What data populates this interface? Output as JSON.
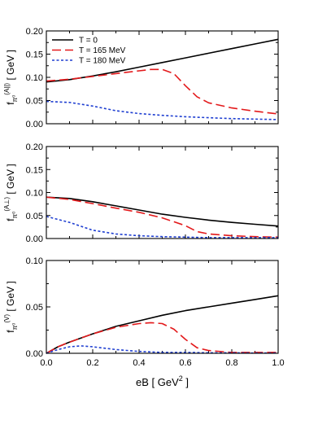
{
  "chart_data": [
    {
      "type": "line",
      "panel": "top",
      "ylabel": {
        "main": "f",
        "sub": "π⁰",
        "sup": "(A||)",
        "unit": "[ GeV ]"
      },
      "xlim": [
        0.0,
        1.0
      ],
      "ylim": [
        0.0,
        0.2
      ],
      "yticks": [
        "0.00",
        "0.05",
        "0.10",
        "0.15",
        "0.20"
      ],
      "xticks": [
        "",
        "",
        "",
        "",
        "",
        ""
      ],
      "legend": {
        "position": "top-left",
        "entries": [
          "T = 0",
          "T = 165 MeV",
          "T = 180 MeV"
        ]
      },
      "series": [
        {
          "name": "T = 0",
          "color": "#000000",
          "dash": "solid",
          "x": [
            0.0,
            0.1,
            0.2,
            0.3,
            0.4,
            0.5,
            0.6,
            0.7,
            0.8,
            0.9,
            1.0
          ],
          "y": [
            0.09,
            0.095,
            0.103,
            0.112,
            0.122,
            0.132,
            0.142,
            0.152,
            0.162,
            0.172,
            0.182
          ]
        },
        {
          "name": "T = 165 MeV",
          "color": "#e31a1c",
          "dash": "dashed",
          "x": [
            0.0,
            0.1,
            0.2,
            0.3,
            0.4,
            0.45,
            0.5,
            0.55,
            0.6,
            0.65,
            0.7,
            0.8,
            0.9,
            1.0
          ],
          "y": [
            0.092,
            0.096,
            0.102,
            0.108,
            0.114,
            0.117,
            0.117,
            0.108,
            0.082,
            0.058,
            0.045,
            0.034,
            0.027,
            0.021
          ]
        },
        {
          "name": "T = 180 MeV",
          "color": "#1f3fd1",
          "dash": "dotted",
          "x": [
            0.0,
            0.1,
            0.2,
            0.3,
            0.4,
            0.5,
            0.6,
            0.7,
            0.8,
            0.9,
            1.0
          ],
          "y": [
            0.048,
            0.046,
            0.038,
            0.028,
            0.022,
            0.018,
            0.015,
            0.013,
            0.011,
            0.01,
            0.009
          ]
        }
      ]
    },
    {
      "type": "line",
      "panel": "middle",
      "ylabel": {
        "main": "f",
        "sub": "π⁰",
        "sup": "(A⊥)",
        "unit": "[ GeV ]"
      },
      "xlim": [
        0.0,
        1.0
      ],
      "ylim": [
        0.0,
        0.2
      ],
      "yticks": [
        "0.00",
        "0.05",
        "0.10",
        "0.15",
        "0.20"
      ],
      "xticks": [
        "",
        "",
        "",
        "",
        "",
        ""
      ],
      "series": [
        {
          "name": "T = 0",
          "color": "#000000",
          "dash": "solid",
          "x": [
            0.0,
            0.1,
            0.2,
            0.3,
            0.4,
            0.5,
            0.6,
            0.7,
            0.8,
            0.9,
            1.0
          ],
          "y": [
            0.09,
            0.087,
            0.08,
            0.071,
            0.062,
            0.053,
            0.046,
            0.04,
            0.035,
            0.031,
            0.027
          ]
        },
        {
          "name": "T = 165 MeV",
          "color": "#e31a1c",
          "dash": "dashed",
          "x": [
            0.0,
            0.1,
            0.2,
            0.3,
            0.4,
            0.5,
            0.6,
            0.65,
            0.7,
            0.8,
            0.9,
            1.0
          ],
          "y": [
            0.09,
            0.085,
            0.076,
            0.066,
            0.057,
            0.045,
            0.028,
            0.015,
            0.01,
            0.006,
            0.004,
            0.003
          ]
        },
        {
          "name": "T = 180 MeV",
          "color": "#1f3fd1",
          "dash": "dotted",
          "x": [
            0.0,
            0.1,
            0.2,
            0.3,
            0.4,
            0.5,
            0.6,
            0.7,
            0.8,
            0.9,
            1.0
          ],
          "y": [
            0.048,
            0.035,
            0.018,
            0.01,
            0.006,
            0.004,
            0.003,
            0.002,
            0.002,
            0.002,
            0.002
          ]
        }
      ]
    },
    {
      "type": "line",
      "panel": "bottom",
      "ylabel": {
        "main": "f",
        "sub": "π⁰",
        "sup": "(V)",
        "unit": "[ GeV ]"
      },
      "xlabel": {
        "main": "eB [ GeV",
        "sup": "2",
        "tail": " ]"
      },
      "xlim": [
        0.0,
        1.0
      ],
      "ylim": [
        0.0,
        0.1
      ],
      "yticks": [
        "0.00",
        "0.05",
        "0.10"
      ],
      "xticks": [
        "0.0",
        "0.2",
        "0.4",
        "0.6",
        "0.8",
        "1.0"
      ],
      "series": [
        {
          "name": "T = 0",
          "color": "#000000",
          "dash": "solid",
          "x": [
            0.0,
            0.05,
            0.1,
            0.2,
            0.3,
            0.4,
            0.5,
            0.6,
            0.7,
            0.8,
            0.9,
            1.0
          ],
          "y": [
            0.0,
            0.007,
            0.012,
            0.021,
            0.029,
            0.035,
            0.041,
            0.046,
            0.05,
            0.054,
            0.058,
            0.062
          ]
        },
        {
          "name": "T = 165 MeV",
          "color": "#e31a1c",
          "dash": "dashed",
          "x": [
            0.0,
            0.05,
            0.1,
            0.2,
            0.3,
            0.4,
            0.45,
            0.5,
            0.55,
            0.6,
            0.65,
            0.7,
            0.8,
            0.9,
            1.0
          ],
          "y": [
            0.0,
            0.007,
            0.012,
            0.021,
            0.028,
            0.032,
            0.033,
            0.032,
            0.026,
            0.015,
            0.006,
            0.003,
            0.001,
            0.001,
            0.001
          ]
        },
        {
          "name": "T = 180 MeV",
          "color": "#1f3fd1",
          "dash": "dotted",
          "x": [
            0.0,
            0.05,
            0.1,
            0.15,
            0.2,
            0.3,
            0.4,
            0.5,
            0.6,
            0.7,
            0.8,
            0.9,
            1.0
          ],
          "y": [
            0.0,
            0.004,
            0.007,
            0.008,
            0.007,
            0.004,
            0.002,
            0.001,
            0.001,
            0.0005,
            0.0005,
            0.0003,
            0.0003
          ]
        }
      ]
    }
  ]
}
